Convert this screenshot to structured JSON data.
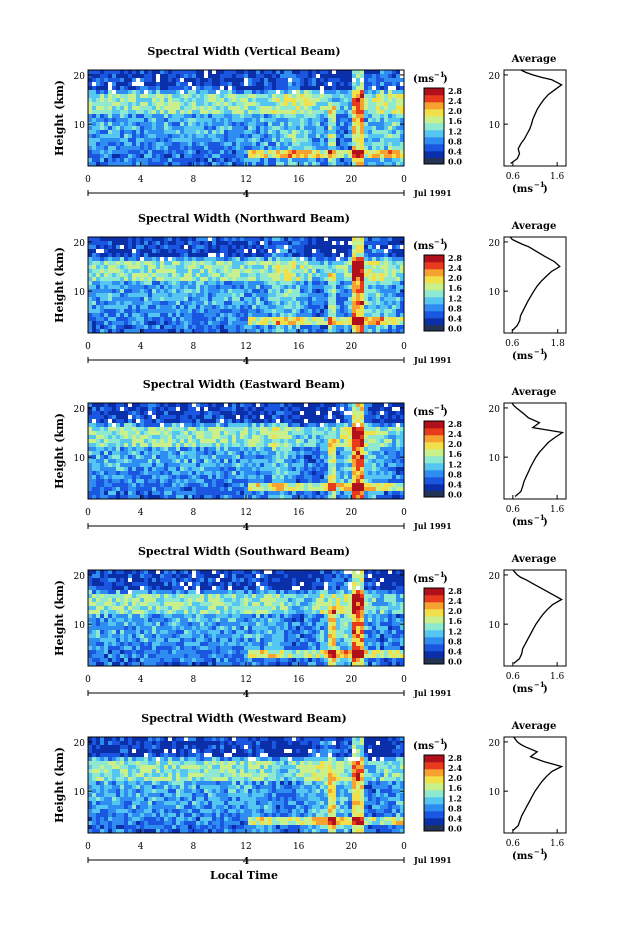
{
  "figure": {
    "colorbar_unit": "(ms",
    "colorbar_unit_exp": "−1",
    "colorbar_ticks": [
      "2.8",
      "2.4",
      "2.0",
      "1.6",
      "1.2",
      "0.8",
      "0.4",
      "0.0"
    ],
    "date_label": "Jul 1991",
    "date_marker": "4",
    "xlabel": "Local Time",
    "ylabel": "Height (km)",
    "average_title": "Average",
    "average_xlabel": "(ms",
    "average_xlabel_exp": "−1",
    "colors": {
      "scale": [
        "#0b2fa8",
        "#1a56e0",
        "#2f8cf0",
        "#55c6f2",
        "#8fe8d0",
        "#c9f08a",
        "#f2e04a",
        "#f7a130",
        "#e83a1c",
        "#b0101a"
      ],
      "bottom_swatch": "#223355",
      "line": "#000000"
    }
  },
  "chart_data": [
    {
      "type": "heatmap",
      "title": "Spectral Width (Vertical Beam)",
      "xlabel": "Local Time",
      "ylabel": "Height (km)",
      "x_ticks": [
        "0",
        "4",
        "8",
        "12",
        "16",
        "20",
        "0"
      ],
      "xlim": [
        0,
        24
      ],
      "y_ticks": [
        "20",
        "10"
      ],
      "ylim": [
        1.5,
        21
      ],
      "colorbar_range": [
        0.0,
        3.0
      ],
      "average": {
        "xlabel": "(ms−1)",
        "x_ticks": [
          "0.6",
          "1.6"
        ],
        "xlim": [
          0.4,
          1.8
        ],
        "y_ticks": [
          "20",
          "10"
        ],
        "x": [
          0.55,
          0.7,
          0.75,
          0.72,
          0.78,
          0.86,
          0.92,
          0.98,
          1.02,
          1.05,
          1.1,
          1.15,
          1.22,
          1.3,
          1.4,
          1.55,
          1.7,
          1.48,
          1.25,
          1.05,
          0.9,
          0.78
        ],
        "y": [
          2,
          3,
          4,
          5,
          6,
          7,
          8,
          9,
          10,
          11,
          12,
          13,
          14,
          15,
          16,
          17,
          18,
          19,
          19.5,
          20,
          20.5,
          21
        ]
      }
    },
    {
      "type": "heatmap",
      "title": "Spectral Width (Northward Beam)",
      "xlabel": "Local Time",
      "ylabel": "Height (km)",
      "x_ticks": [
        "0",
        "4",
        "8",
        "12",
        "16",
        "20",
        "0"
      ],
      "xlim": [
        0,
        24
      ],
      "y_ticks": [
        "20",
        "10"
      ],
      "ylim": [
        1.5,
        21
      ],
      "colorbar_range": [
        0.0,
        3.0
      ],
      "average": {
        "xlabel": "(ms−1)",
        "x_ticks": [
          "0.6",
          "1.8"
        ],
        "xlim": [
          0.4,
          1.9
        ],
        "y_ticks": [
          "20",
          "10"
        ],
        "x": [
          0.6,
          0.72,
          0.78,
          0.8,
          0.86,
          0.92,
          0.98,
          1.05,
          1.12,
          1.2,
          1.3,
          1.42,
          1.55,
          1.75,
          1.62,
          1.4,
          1.2,
          1.0,
          0.85,
          0.72,
          0.6,
          0.55
        ],
        "y": [
          2,
          3,
          4,
          5,
          6,
          7,
          8,
          9,
          10,
          11,
          12,
          13,
          14,
          15,
          16,
          17,
          18,
          19,
          19.5,
          20,
          20.5,
          21
        ]
      }
    },
    {
      "type": "heatmap",
      "title": "Spectral Width (Eastward Beam)",
      "xlabel": "Local Time",
      "ylabel": "Height (km)",
      "x_ticks": [
        "0",
        "4",
        "8",
        "12",
        "16",
        "20",
        "0"
      ],
      "xlim": [
        0,
        24
      ],
      "y_ticks": [
        "20",
        "10"
      ],
      "ylim": [
        1.5,
        21
      ],
      "colorbar_range": [
        0.0,
        3.0
      ],
      "average": {
        "xlabel": "(ms−1)",
        "x_ticks": [
          "0.6",
          "1.6"
        ],
        "xlim": [
          0.4,
          1.8
        ],
        "y_ticks": [
          "20",
          "10"
        ],
        "x": [
          0.65,
          0.78,
          0.82,
          0.85,
          0.9,
          0.95,
          1.0,
          1.06,
          1.12,
          1.2,
          1.3,
          1.4,
          1.55,
          1.72,
          1.05,
          1.2,
          0.95,
          0.82,
          0.75,
          0.68,
          0.62,
          0.58
        ],
        "y": [
          2,
          3,
          4,
          5,
          6,
          7,
          8,
          9,
          10,
          11,
          12,
          13,
          14,
          15,
          16,
          17,
          18,
          19,
          19.5,
          20,
          20.5,
          21
        ]
      }
    },
    {
      "type": "heatmap",
      "title": "Spectral Width (Southward Beam)",
      "xlabel": "Local Time",
      "ylabel": "Height (km)",
      "x_ticks": [
        "0",
        "4",
        "8",
        "12",
        "16",
        "20",
        "0"
      ],
      "xlim": [
        0,
        24
      ],
      "y_ticks": [
        "20",
        "10"
      ],
      "ylim": [
        1.5,
        21
      ],
      "colorbar_range": [
        0.0,
        3.0
      ],
      "average": {
        "xlabel": "(ms−1)",
        "x_ticks": [
          "0.6",
          "1.6"
        ],
        "xlim": [
          0.4,
          1.8
        ],
        "y_ticks": [
          "20",
          "10"
        ],
        "x": [
          0.62,
          0.75,
          0.8,
          0.82,
          0.88,
          0.94,
          1.0,
          1.06,
          1.12,
          1.2,
          1.28,
          1.38,
          1.5,
          1.7,
          1.5,
          1.3,
          1.1,
          0.9,
          0.78,
          0.7,
          0.65,
          0.6
        ],
        "y": [
          2,
          3,
          4,
          5,
          6,
          7,
          8,
          9,
          10,
          11,
          12,
          13,
          14,
          15,
          16,
          17,
          18,
          19,
          19.5,
          20,
          20.5,
          21
        ]
      }
    },
    {
      "type": "heatmap",
      "title": "Spectral Width (Westward Beam)",
      "xlabel": "Local Time",
      "ylabel": "Height (km)",
      "x_ticks": [
        "0",
        "4",
        "8",
        "12",
        "16",
        "20",
        "0"
      ],
      "xlim": [
        0,
        24
      ],
      "y_ticks": [
        "20",
        "10"
      ],
      "ylim": [
        1.5,
        21
      ],
      "colorbar_range": [
        0.0,
        3.0
      ],
      "average": {
        "xlabel": "(ms−1)",
        "x_ticks": [
          "0.6",
          "1.6"
        ],
        "xlim": [
          0.4,
          1.8
        ],
        "y_ticks": [
          "20",
          "10"
        ],
        "x": [
          0.6,
          0.72,
          0.76,
          0.8,
          0.86,
          0.92,
          0.98,
          1.04,
          1.1,
          1.18,
          1.26,
          1.36,
          1.48,
          1.7,
          1.3,
          1.0,
          1.15,
          0.88,
          0.78,
          0.7,
          0.66,
          0.62
        ],
        "y": [
          2,
          3,
          4,
          5,
          6,
          7,
          8,
          9,
          10,
          11,
          12,
          13,
          14,
          15,
          16,
          17,
          18,
          19,
          19.5,
          20,
          20.5,
          21
        ]
      }
    }
  ]
}
